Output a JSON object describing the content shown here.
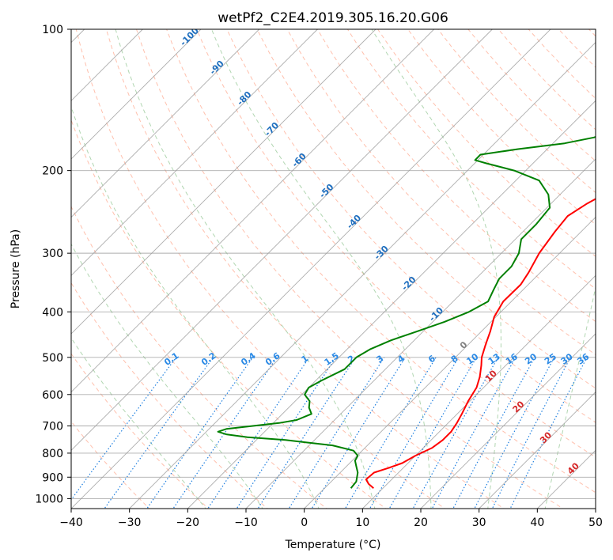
{
  "chart_data": {
    "type": "line",
    "title": "wetPf2_C2E4.2019.305.16.20.G06",
    "xlabel": "Temperature (°C)",
    "ylabel": "Pressure (hPa)",
    "xlim": [
      -40,
      50
    ],
    "ylim": [
      1050,
      100
    ],
    "y_scale": "log",
    "grid": true,
    "x_ticks": [
      -40,
      -30,
      -20,
      -10,
      0,
      10,
      20,
      30,
      40,
      50
    ],
    "x_tick_labels": [
      "−40",
      "−30",
      "−20",
      "−10",
      "0",
      "10",
      "20",
      "30",
      "40",
      "50"
    ],
    "y_ticks": [
      100,
      200,
      300,
      400,
      500,
      600,
      700,
      800,
      900,
      1000
    ],
    "y_tick_labels": [
      "100",
      "200",
      "300",
      "400",
      "500",
      "600",
      "700",
      "800",
      "900",
      "1000"
    ],
    "series": [
      {
        "color": "#ff0000",
        "points": [
          [
            950,
            8.4
          ],
          [
            930,
            6.8
          ],
          [
            910,
            5.6
          ],
          [
            880,
            5.8
          ],
          [
            860,
            7.5
          ],
          [
            840,
            9.0
          ],
          [
            810,
            10.0
          ],
          [
            780,
            11.5
          ],
          [
            750,
            12.0
          ],
          [
            720,
            12.0
          ],
          [
            690,
            11.5
          ],
          [
            660,
            10.8
          ],
          [
            620,
            9.7
          ],
          [
            580,
            8.8
          ],
          [
            550,
            7.5
          ],
          [
            520,
            5.8
          ],
          [
            500,
            4.5
          ],
          [
            470,
            3.0
          ],
          [
            440,
            1.5
          ],
          [
            410,
            -0.3
          ],
          [
            380,
            -1.4
          ],
          [
            350,
            -1.3
          ],
          [
            330,
            -2.0
          ],
          [
            300,
            -3.5
          ],
          [
            270,
            -4.5
          ],
          [
            250,
            -5.0
          ],
          [
            235,
            -3.8
          ],
          [
            225,
            -2.5
          ],
          [
            215,
            -0.5
          ],
          [
            200,
            2.0
          ],
          [
            190,
            4.0
          ],
          [
            180,
            5.0
          ],
          [
            170,
            4.8
          ],
          [
            160,
            4.8
          ],
          [
            150,
            5.2
          ],
          [
            140,
            6.5
          ],
          [
            130,
            9.0
          ],
          [
            120,
            12.0
          ],
          [
            110,
            14.5
          ],
          [
            100,
            15.5
          ]
        ]
      },
      {
        "color": "#008000",
        "points": [
          [
            950,
            4.5
          ],
          [
            920,
            4.3
          ],
          [
            880,
            3.0
          ],
          [
            850,
            1.5
          ],
          [
            830,
            0.5
          ],
          [
            810,
            0.1
          ],
          [
            790,
            -1.5
          ],
          [
            770,
            -6.0
          ],
          [
            750,
            -15.0
          ],
          [
            740,
            -22.0
          ],
          [
            730,
            -26.0
          ],
          [
            720,
            -28.0
          ],
          [
            710,
            -27.0
          ],
          [
            700,
            -23.0
          ],
          [
            690,
            -19.0
          ],
          [
            680,
            -16.5
          ],
          [
            660,
            -15.0
          ],
          [
            640,
            -16.5
          ],
          [
            620,
            -17.5
          ],
          [
            600,
            -19.5
          ],
          [
            580,
            -20.0
          ],
          [
            560,
            -19.0
          ],
          [
            530,
            -17.0
          ],
          [
            500,
            -17.0
          ],
          [
            480,
            -16.0
          ],
          [
            460,
            -14.0
          ],
          [
            440,
            -11.0
          ],
          [
            420,
            -8.0
          ],
          [
            400,
            -5.5
          ],
          [
            380,
            -4.0
          ],
          [
            360,
            -5.0
          ],
          [
            340,
            -6.0
          ],
          [
            320,
            -6.0
          ],
          [
            300,
            -7.0
          ],
          [
            280,
            -9.0
          ],
          [
            260,
            -9.0
          ],
          [
            240,
            -9.5
          ],
          [
            225,
            -12.0
          ],
          [
            210,
            -16.0
          ],
          [
            200,
            -22.0
          ],
          [
            193,
            -28.0
          ],
          [
            190,
            -30.5
          ],
          [
            185,
            -30.5
          ],
          [
            180,
            -25.0
          ],
          [
            175,
            -18.0
          ],
          [
            170,
            -14.0
          ],
          [
            165,
            -12.0
          ],
          [
            150,
            -11.0
          ],
          [
            140,
            -9.5
          ],
          [
            130,
            -6.0
          ],
          [
            120,
            -2.0
          ],
          [
            110,
            1.5
          ],
          [
            100,
            4.0
          ]
        ]
      }
    ],
    "background_lines": {
      "dry_adiabat_labels": [
        "-100",
        "-90",
        "-80",
        "-70",
        "-60",
        "-50",
        "-40",
        "-30",
        "-20",
        "-10",
        "0",
        "10",
        "20",
        "30",
        "40"
      ],
      "mixing_ratio_labels": [
        "0.1",
        "0.2",
        "0.4",
        "0.6",
        "1",
        "1.5",
        "2",
        "3",
        "4",
        "6",
        "8",
        "10",
        "13",
        "16",
        "20",
        "25",
        "30",
        "36"
      ]
    },
    "colors": {
      "temperature": "#ff0000",
      "dewpoint": "#008000",
      "isotherm": "#999999",
      "dry_adiabat": "#ff8c69",
      "moist_adiabat": "#90c490",
      "mixing_ratio": "#1e7fe0",
      "cold_label": "#1f6fbf",
      "warm_label": "#d62728",
      "zero_label": "#808080"
    }
  }
}
